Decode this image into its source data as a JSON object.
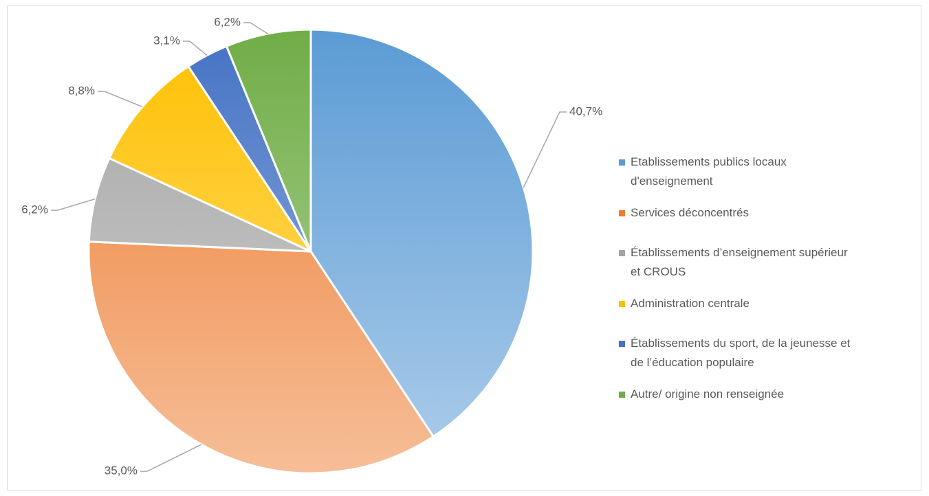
{
  "chart_data": {
    "type": "pie",
    "categories": [
      "Etablissements publics locaux d'enseignement",
      "Services déconcentrés",
      "Établissements d’enseignement supérieur et CROUS",
      "Administration centrale",
      "Établissements du sport, de la jeunesse et de l’éducation populaire",
      "Autre/ origine non renseignée"
    ],
    "values": [
      40.7,
      35.0,
      6.2,
      8.8,
      3.1,
      6.2
    ],
    "value_labels": [
      "40,7%",
      "35,0%",
      "6,2%",
      "8,8%",
      "3,1%",
      "6,2%"
    ],
    "colors": [
      "#5b9bd5",
      "#ed7d31",
      "#a5a5a5",
      "#ffc000",
      "#4472c4",
      "#70ad47"
    ],
    "legend": "right"
  }
}
